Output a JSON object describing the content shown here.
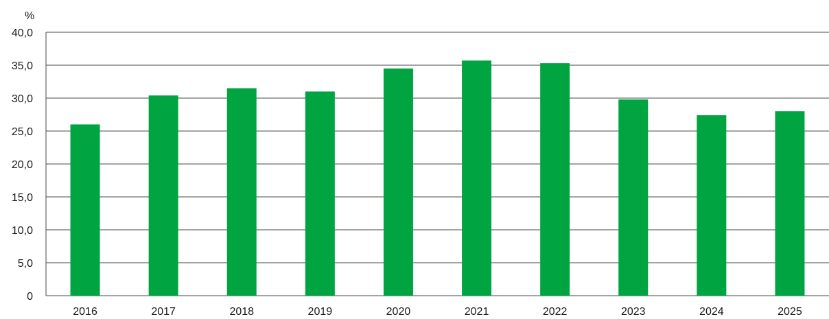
{
  "chart_data": {
    "type": "bar",
    "title": "",
    "xlabel": "",
    "ylabel": "%",
    "categories": [
      "2016",
      "2017",
      "2018",
      "2019",
      "2020",
      "2021",
      "2022",
      "2023",
      "2024",
      "2025"
    ],
    "series": [
      {
        "values": [
          26.0,
          30.4,
          31.5,
          31.0,
          34.5,
          35.7,
          35.3,
          29.8,
          27.4,
          28.0
        ],
        "color": "#00a542"
      }
    ],
    "ylim": [
      0,
      40
    ],
    "yticks": [
      0,
      5,
      10,
      15,
      20,
      25,
      30,
      35,
      40
    ],
    "ytick_labels": [
      "0",
      "5,0",
      "10,0",
      "15,0",
      "20,0",
      "25,0",
      "30,0",
      "35,0",
      "40,0"
    ],
    "grid": true,
    "legend": "none"
  }
}
